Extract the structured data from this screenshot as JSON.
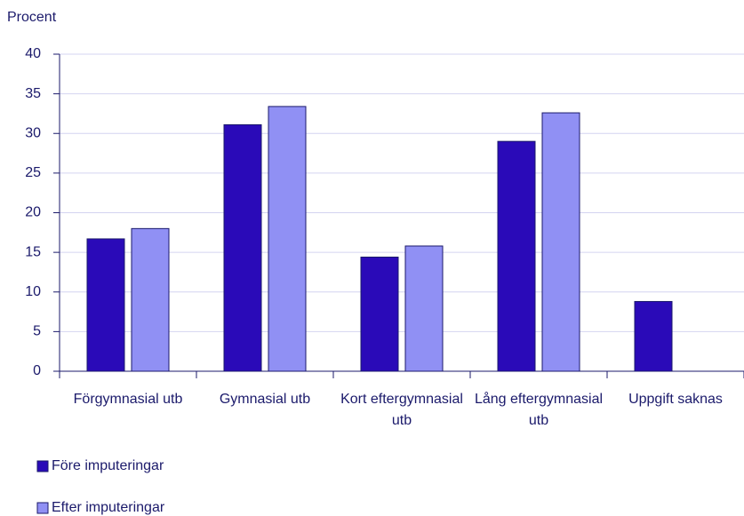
{
  "chart_data": {
    "type": "bar",
    "y_label": "Procent",
    "categories": [
      "Förgymnasial utb",
      "Gymnasial utb",
      "Kort eftergymnasial utb",
      "Lång eftergymnasial utb",
      "Uppgift saknas"
    ],
    "series": [
      {
        "name": "Före imputeringar",
        "color": "#2a0ab8",
        "values": [
          16.7,
          31.1,
          14.4,
          29.0,
          8.8
        ]
      },
      {
        "name": "Efter imputeringar",
        "color": "#9090f4",
        "values": [
          18.0,
          33.4,
          15.8,
          32.6,
          null
        ]
      }
    ],
    "ylim": [
      0,
      40
    ],
    "yticks": [
      0,
      5,
      10,
      15,
      20,
      25,
      30,
      35,
      40
    ],
    "grid": true,
    "legend": "bottom-left"
  }
}
